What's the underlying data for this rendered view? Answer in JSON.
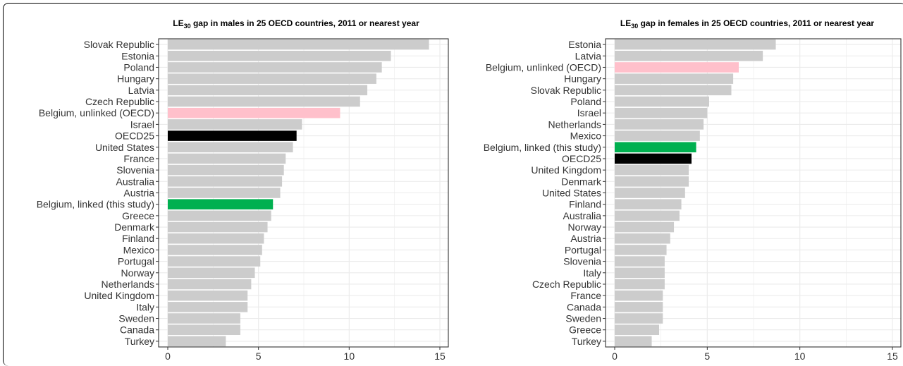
{
  "chart_data": [
    {
      "type": "bar",
      "orientation": "horizontal",
      "title_prefix": "LE",
      "title_sub": "30",
      "title_rest": " gap in males in 25 OECD countries, 2011 or nearest year",
      "xlim": [
        0,
        15
      ],
      "xticks": [
        0,
        5,
        10,
        15
      ],
      "grid": true,
      "colors": {
        "default": "#cccccc",
        "highlight_pink": "#ffc0cb",
        "highlight_black": "#000000",
        "highlight_green": "#00b050"
      },
      "categories": [
        "Slovak Republic",
        "Estonia",
        "Poland",
        "Hungary",
        "Latvia",
        "Czech Republic",
        "Belgium, unlinked (OECD)",
        "Israel",
        "OECD25",
        "United States",
        "France",
        "Slovenia",
        "Australia",
        "Austria",
        "Belgium, linked (this study)",
        "Greece",
        "Denmark",
        "Finland",
        "Mexico",
        "Portugal",
        "Norway",
        "Netherlands",
        "United Kingdom",
        "Italy",
        "Sweden",
        "Canada",
        "Turkey"
      ],
      "values": [
        14.4,
        12.3,
        11.8,
        11.5,
        11.0,
        10.6,
        9.5,
        7.4,
        7.1,
        6.9,
        6.5,
        6.4,
        6.3,
        6.2,
        5.8,
        5.7,
        5.5,
        5.3,
        5.2,
        5.1,
        4.8,
        4.6,
        4.4,
        4.4,
        4.0,
        4.0,
        3.2
      ],
      "bar_colors": [
        "default",
        "default",
        "default",
        "default",
        "default",
        "default",
        "highlight_pink",
        "default",
        "highlight_black",
        "default",
        "default",
        "default",
        "default",
        "default",
        "highlight_green",
        "default",
        "default",
        "default",
        "default",
        "default",
        "default",
        "default",
        "default",
        "default",
        "default",
        "default",
        "default"
      ]
    },
    {
      "type": "bar",
      "orientation": "horizontal",
      "title_prefix": "LE",
      "title_sub": "30",
      "title_rest": " gap in females in 25 OECD countries, 2011 or nearest year",
      "xlim": [
        0,
        15
      ],
      "xticks": [
        0,
        5,
        10,
        15
      ],
      "grid": true,
      "colors": {
        "default": "#cccccc",
        "highlight_pink": "#ffc0cb",
        "highlight_black": "#000000",
        "highlight_green": "#00b050"
      },
      "categories": [
        "Estonia",
        "Latvia",
        "Belgium, unlinked (OECD)",
        "Hungary",
        "Slovak Republic",
        "Poland",
        "Israel",
        "Netherlands",
        "Mexico",
        "Belgium, linked (this study)",
        "OECD25",
        "United Kingdom",
        "Denmark",
        "United States",
        "Finland",
        "Australia",
        "Norway",
        "Austria",
        "Portugal",
        "Slovenia",
        "Italy",
        "Czech Republic",
        "France",
        "Canada",
        "Sweden",
        "Greece",
        "Turkey"
      ],
      "values": [
        8.7,
        8.0,
        6.7,
        6.4,
        6.3,
        5.1,
        5.0,
        4.8,
        4.6,
        4.4,
        4.15,
        4.0,
        4.0,
        3.8,
        3.6,
        3.5,
        3.2,
        3.0,
        2.8,
        2.7,
        2.7,
        2.7,
        2.6,
        2.6,
        2.6,
        2.4,
        2.0
      ],
      "bar_colors": [
        "default",
        "default",
        "highlight_pink",
        "default",
        "default",
        "default",
        "default",
        "default",
        "default",
        "highlight_green",
        "highlight_black",
        "default",
        "default",
        "default",
        "default",
        "default",
        "default",
        "default",
        "default",
        "default",
        "default",
        "default",
        "default",
        "default",
        "default",
        "default",
        "default"
      ]
    }
  ]
}
